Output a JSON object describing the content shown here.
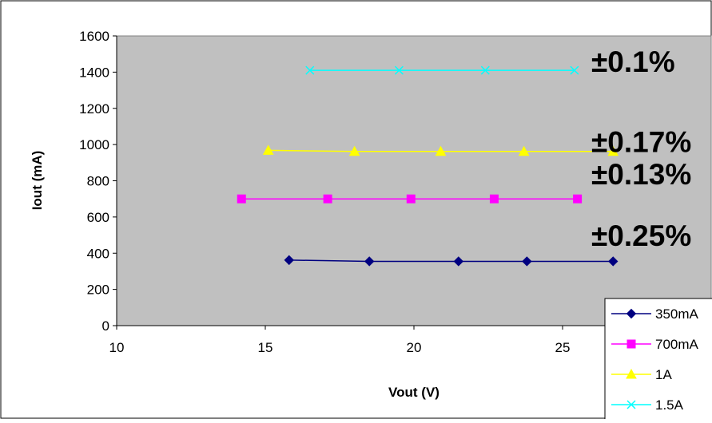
{
  "chart_data": {
    "type": "scatter",
    "title": "",
    "xlabel": "Vout (V)",
    "ylabel": "Iout (mA)",
    "xlim": [
      10,
      30
    ],
    "ylim": [
      0,
      1600
    ],
    "x_ticks": [
      "10",
      "15",
      "20",
      "25"
    ],
    "y_ticks": [
      "0",
      "200",
      "400",
      "600",
      "800",
      "1000",
      "1200",
      "1400",
      "1600"
    ],
    "plot_background": "#c0c0c0",
    "grid": false,
    "legend_position": "bottom-right",
    "series": [
      {
        "name": "350mA",
        "color": "#000080",
        "marker": "diamond",
        "points": [
          [
            15.8,
            362
          ],
          [
            18.5,
            355
          ],
          [
            21.5,
            355
          ],
          [
            23.8,
            355
          ],
          [
            26.7,
            355
          ]
        ]
      },
      {
        "name": "700mA",
        "color": "#ff00ff",
        "marker": "square",
        "points": [
          [
            14.2,
            700
          ],
          [
            17.1,
            700
          ],
          [
            19.9,
            700
          ],
          [
            22.7,
            700
          ],
          [
            25.5,
            700
          ]
        ]
      },
      {
        "name": "1A",
        "color": "#ffff00",
        "marker": "triangle",
        "points": [
          [
            15.1,
            968
          ],
          [
            18.0,
            962
          ],
          [
            20.9,
            962
          ],
          [
            23.7,
            962
          ],
          [
            26.7,
            962
          ]
        ]
      },
      {
        "name": "1.5A",
        "color": "#00ffff",
        "marker": "x",
        "points": [
          [
            16.5,
            1410
          ],
          [
            19.5,
            1410
          ],
          [
            22.4,
            1410
          ],
          [
            25.4,
            1410
          ]
        ]
      }
    ],
    "annotations": [
      {
        "text": "±0.1%",
        "y": 1410
      },
      {
        "text": "±0.17%",
        "y": 968
      },
      {
        "text": "±0.13%",
        "y": 790
      },
      {
        "text": "±0.25%",
        "y": 450
      }
    ]
  }
}
